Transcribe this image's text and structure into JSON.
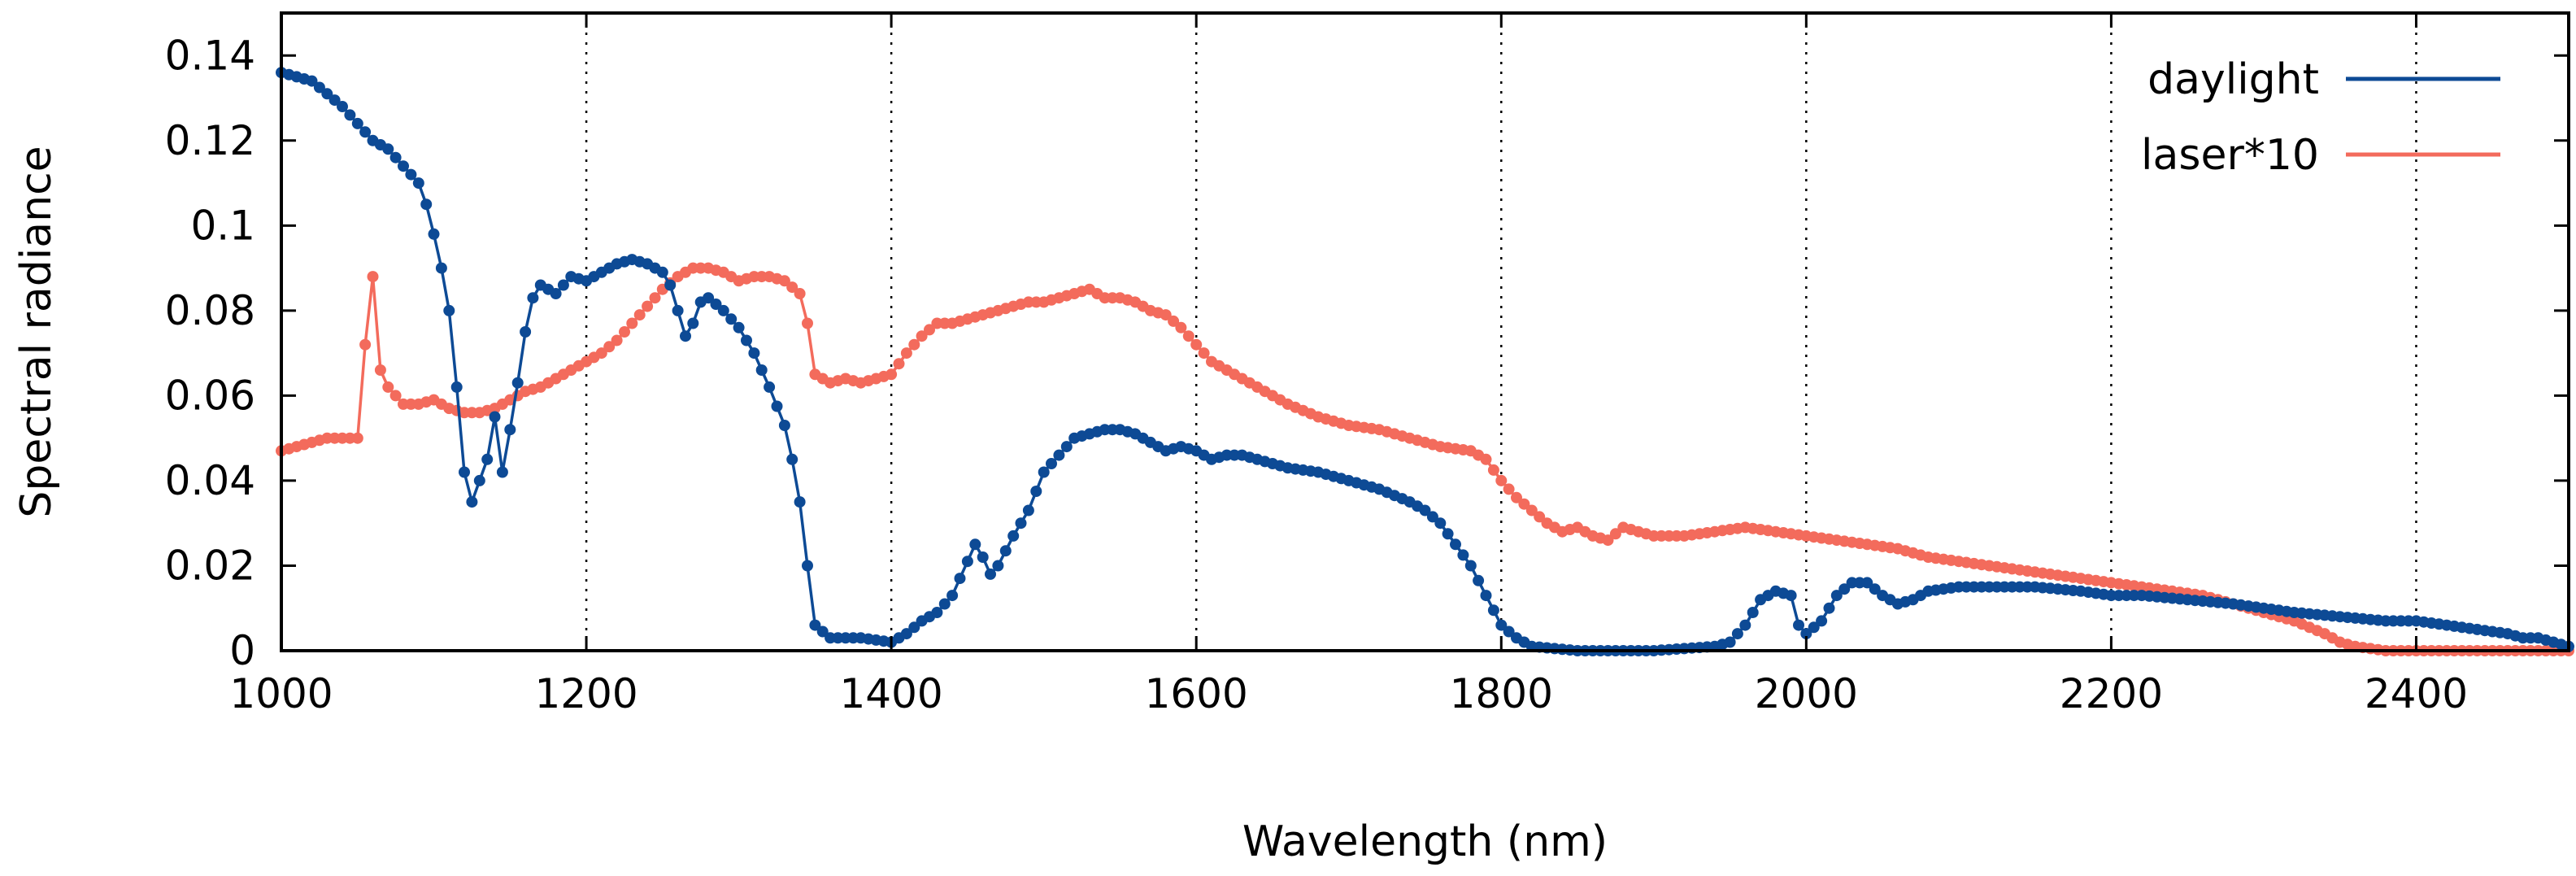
{
  "chart_data": {
    "type": "line",
    "title": "",
    "xlabel": "Wavelength (nm)",
    "ylabel": "Spectral radiance",
    "xlim": [
      1000,
      2500
    ],
    "ylim": [
      0,
      0.15
    ],
    "x_ticks": [
      1000,
      1200,
      1400,
      1600,
      1800,
      2000,
      2200,
      2400
    ],
    "x_tick_labels": [
      "1000",
      "1200",
      "1400",
      "1600",
      "1800",
      "2000",
      "2200",
      "2400"
    ],
    "y_ticks": [
      0,
      0.02,
      0.04,
      0.06,
      0.08,
      0.1,
      0.12,
      0.14
    ],
    "y_tick_labels": [
      "0",
      "0.02",
      "0.04",
      "0.06",
      "0.08",
      "0.1",
      "0.12",
      "0.14"
    ],
    "grid": "vertical dotted at x ticks",
    "legend_position": "top-right",
    "series": [
      {
        "name": "daylight",
        "color": "#0d4a95",
        "points": [
          [
            1000,
            0.136
          ],
          [
            1010,
            0.135
          ],
          [
            1020,
            0.134
          ],
          [
            1030,
            0.131
          ],
          [
            1040,
            0.128
          ],
          [
            1050,
            0.124
          ],
          [
            1060,
            0.12
          ],
          [
            1070,
            0.118
          ],
          [
            1080,
            0.114
          ],
          [
            1090,
            0.11
          ],
          [
            1095,
            0.105
          ],
          [
            1100,
            0.098
          ],
          [
            1105,
            0.09
          ],
          [
            1110,
            0.08
          ],
          [
            1115,
            0.062
          ],
          [
            1120,
            0.042
          ],
          [
            1125,
            0.035
          ],
          [
            1130,
            0.04
          ],
          [
            1135,
            0.045
          ],
          [
            1140,
            0.055
          ],
          [
            1145,
            0.042
          ],
          [
            1150,
            0.052
          ],
          [
            1155,
            0.063
          ],
          [
            1160,
            0.075
          ],
          [
            1165,
            0.083
          ],
          [
            1170,
            0.086
          ],
          [
            1180,
            0.084
          ],
          [
            1190,
            0.088
          ],
          [
            1200,
            0.087
          ],
          [
            1210,
            0.089
          ],
          [
            1220,
            0.091
          ],
          [
            1230,
            0.092
          ],
          [
            1240,
            0.091
          ],
          [
            1250,
            0.089
          ],
          [
            1255,
            0.086
          ],
          [
            1260,
            0.08
          ],
          [
            1265,
            0.074
          ],
          [
            1270,
            0.077
          ],
          [
            1275,
            0.082
          ],
          [
            1280,
            0.083
          ],
          [
            1290,
            0.08
          ],
          [
            1300,
            0.076
          ],
          [
            1310,
            0.07
          ],
          [
            1320,
            0.062
          ],
          [
            1330,
            0.053
          ],
          [
            1335,
            0.045
          ],
          [
            1340,
            0.035
          ],
          [
            1345,
            0.02
          ],
          [
            1350,
            0.006
          ],
          [
            1360,
            0.003
          ],
          [
            1380,
            0.003
          ],
          [
            1400,
            0.002
          ],
          [
            1410,
            0.004
          ],
          [
            1420,
            0.007
          ],
          [
            1430,
            0.009
          ],
          [
            1440,
            0.013
          ],
          [
            1450,
            0.021
          ],
          [
            1455,
            0.025
          ],
          [
            1460,
            0.022
          ],
          [
            1465,
            0.018
          ],
          [
            1470,
            0.02
          ],
          [
            1480,
            0.027
          ],
          [
            1490,
            0.033
          ],
          [
            1500,
            0.042
          ],
          [
            1510,
            0.046
          ],
          [
            1520,
            0.05
          ],
          [
            1530,
            0.051
          ],
          [
            1540,
            0.052
          ],
          [
            1550,
            0.052
          ],
          [
            1560,
            0.051
          ],
          [
            1570,
            0.049
          ],
          [
            1580,
            0.047
          ],
          [
            1590,
            0.048
          ],
          [
            1600,
            0.047
          ],
          [
            1610,
            0.045
          ],
          [
            1620,
            0.046
          ],
          [
            1630,
            0.046
          ],
          [
            1640,
            0.045
          ],
          [
            1650,
            0.044
          ],
          [
            1660,
            0.043
          ],
          [
            1680,
            0.042
          ],
          [
            1700,
            0.04
          ],
          [
            1720,
            0.038
          ],
          [
            1740,
            0.035
          ],
          [
            1750,
            0.033
          ],
          [
            1760,
            0.03
          ],
          [
            1770,
            0.025
          ],
          [
            1780,
            0.02
          ],
          [
            1790,
            0.013
          ],
          [
            1800,
            0.006
          ],
          [
            1810,
            0.003
          ],
          [
            1820,
            0.001
          ],
          [
            1850,
            0.0
          ],
          [
            1900,
            0.0
          ],
          [
            1940,
            0.001
          ],
          [
            1950,
            0.002
          ],
          [
            1960,
            0.006
          ],
          [
            1970,
            0.012
          ],
          [
            1980,
            0.014
          ],
          [
            1990,
            0.013
          ],
          [
            1995,
            0.006
          ],
          [
            2000,
            0.004
          ],
          [
            2010,
            0.007
          ],
          [
            2020,
            0.013
          ],
          [
            2030,
            0.016
          ],
          [
            2040,
            0.016
          ],
          [
            2050,
            0.013
          ],
          [
            2060,
            0.011
          ],
          [
            2070,
            0.012
          ],
          [
            2080,
            0.014
          ],
          [
            2100,
            0.015
          ],
          [
            2120,
            0.015
          ],
          [
            2150,
            0.015
          ],
          [
            2180,
            0.014
          ],
          [
            2200,
            0.013
          ],
          [
            2220,
            0.013
          ],
          [
            2250,
            0.012
          ],
          [
            2280,
            0.011
          ],
          [
            2300,
            0.01
          ],
          [
            2320,
            0.009
          ],
          [
            2350,
            0.008
          ],
          [
            2380,
            0.007
          ],
          [
            2400,
            0.007
          ],
          [
            2420,
            0.006
          ],
          [
            2440,
            0.005
          ],
          [
            2460,
            0.004
          ],
          [
            2470,
            0.003
          ],
          [
            2480,
            0.003
          ],
          [
            2490,
            0.002
          ],
          [
            2500,
            0.001
          ]
        ]
      },
      {
        "name": "laser*10",
        "color": "#f36b5c",
        "points": [
          [
            1000,
            0.047
          ],
          [
            1010,
            0.048
          ],
          [
            1020,
            0.049
          ],
          [
            1030,
            0.05
          ],
          [
            1040,
            0.05
          ],
          [
            1050,
            0.05
          ],
          [
            1055,
            0.072
          ],
          [
            1060,
            0.088
          ],
          [
            1065,
            0.066
          ],
          [
            1070,
            0.062
          ],
          [
            1080,
            0.058
          ],
          [
            1090,
            0.058
          ],
          [
            1100,
            0.059
          ],
          [
            1110,
            0.057
          ],
          [
            1120,
            0.056
          ],
          [
            1130,
            0.056
          ],
          [
            1140,
            0.057
          ],
          [
            1150,
            0.059
          ],
          [
            1160,
            0.061
          ],
          [
            1170,
            0.062
          ],
          [
            1180,
            0.064
          ],
          [
            1190,
            0.066
          ],
          [
            1200,
            0.068
          ],
          [
            1210,
            0.07
          ],
          [
            1220,
            0.073
          ],
          [
            1230,
            0.077
          ],
          [
            1240,
            0.081
          ],
          [
            1250,
            0.085
          ],
          [
            1260,
            0.088
          ],
          [
            1270,
            0.09
          ],
          [
            1280,
            0.09
          ],
          [
            1290,
            0.089
          ],
          [
            1300,
            0.087
          ],
          [
            1310,
            0.088
          ],
          [
            1320,
            0.088
          ],
          [
            1330,
            0.087
          ],
          [
            1340,
            0.084
          ],
          [
            1345,
            0.077
          ],
          [
            1350,
            0.065
          ],
          [
            1360,
            0.063
          ],
          [
            1370,
            0.064
          ],
          [
            1380,
            0.063
          ],
          [
            1390,
            0.064
          ],
          [
            1400,
            0.065
          ],
          [
            1410,
            0.07
          ],
          [
            1420,
            0.074
          ],
          [
            1430,
            0.077
          ],
          [
            1440,
            0.077
          ],
          [
            1450,
            0.078
          ],
          [
            1460,
            0.079
          ],
          [
            1470,
            0.08
          ],
          [
            1480,
            0.081
          ],
          [
            1490,
            0.082
          ],
          [
            1500,
            0.082
          ],
          [
            1510,
            0.083
          ],
          [
            1520,
            0.084
          ],
          [
            1530,
            0.085
          ],
          [
            1540,
            0.083
          ],
          [
            1550,
            0.083
          ],
          [
            1560,
            0.082
          ],
          [
            1570,
            0.08
          ],
          [
            1580,
            0.079
          ],
          [
            1590,
            0.076
          ],
          [
            1600,
            0.072
          ],
          [
            1610,
            0.068
          ],
          [
            1620,
            0.066
          ],
          [
            1630,
            0.064
          ],
          [
            1640,
            0.062
          ],
          [
            1650,
            0.06
          ],
          [
            1660,
            0.058
          ],
          [
            1680,
            0.055
          ],
          [
            1700,
            0.053
          ],
          [
            1720,
            0.052
          ],
          [
            1740,
            0.05
          ],
          [
            1760,
            0.048
          ],
          [
            1780,
            0.047
          ],
          [
            1790,
            0.045
          ],
          [
            1800,
            0.04
          ],
          [
            1810,
            0.036
          ],
          [
            1820,
            0.033
          ],
          [
            1830,
            0.03
          ],
          [
            1840,
            0.028
          ],
          [
            1850,
            0.029
          ],
          [
            1860,
            0.027
          ],
          [
            1870,
            0.026
          ],
          [
            1880,
            0.029
          ],
          [
            1890,
            0.028
          ],
          [
            1900,
            0.027
          ],
          [
            1920,
            0.027
          ],
          [
            1940,
            0.028
          ],
          [
            1960,
            0.029
          ],
          [
            1980,
            0.028
          ],
          [
            2000,
            0.027
          ],
          [
            2020,
            0.026
          ],
          [
            2040,
            0.025
          ],
          [
            2060,
            0.024
          ],
          [
            2080,
            0.022
          ],
          [
            2100,
            0.021
          ],
          [
            2120,
            0.02
          ],
          [
            2140,
            0.019
          ],
          [
            2160,
            0.018
          ],
          [
            2180,
            0.017
          ],
          [
            2200,
            0.016
          ],
          [
            2220,
            0.015
          ],
          [
            2240,
            0.014
          ],
          [
            2260,
            0.013
          ],
          [
            2280,
            0.011
          ],
          [
            2300,
            0.009
          ],
          [
            2320,
            0.007
          ],
          [
            2340,
            0.004
          ],
          [
            2350,
            0.002
          ],
          [
            2360,
            0.001
          ],
          [
            2380,
            0.0
          ],
          [
            2400,
            0.0
          ],
          [
            2450,
            0.0
          ],
          [
            2500,
            0.0
          ]
        ]
      }
    ]
  }
}
